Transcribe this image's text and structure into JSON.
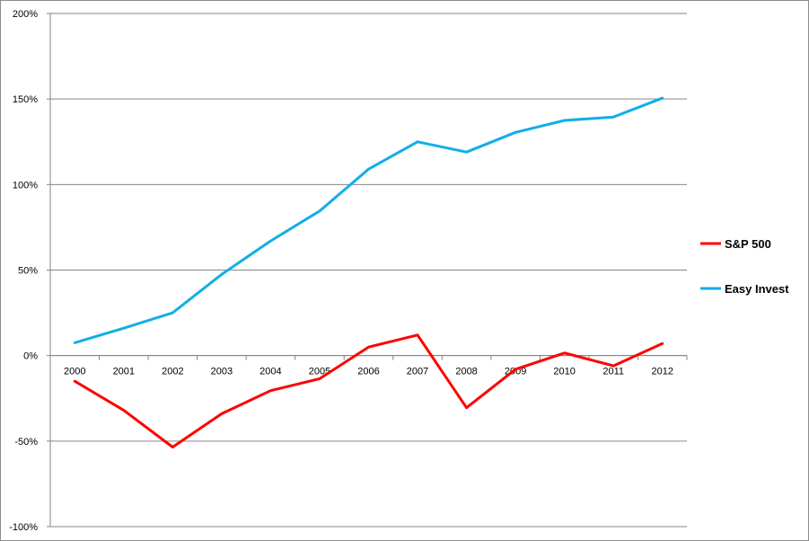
{
  "chart_data": {
    "type": "line",
    "title": "",
    "xlabel": "",
    "ylabel": "",
    "categories": [
      "2000",
      "2001",
      "2002",
      "2003",
      "2004",
      "2005",
      "2006",
      "2007",
      "2008",
      "2009",
      "2010",
      "2011",
      "2012"
    ],
    "y_ticks": [
      "200%",
      "150%",
      "100%",
      "50%",
      "0%",
      "-50%",
      "-100%"
    ],
    "ylim": [
      -100,
      200
    ],
    "grid": "horizontal",
    "legend_position": "right",
    "series": [
      {
        "name": "S&P 500",
        "color": "#ff0000",
        "values": [
          -15,
          -32,
          -53.5,
          -34,
          -20.5,
          -13.5,
          5,
          12,
          -30.5,
          -8,
          1.5,
          -6,
          7
        ]
      },
      {
        "name": "Easy Invest",
        "color": "#11aee8",
        "values": [
          7.5,
          16,
          25,
          47.5,
          67,
          84.5,
          109,
          125,
          119,
          130.5,
          137.5,
          139.5,
          150.5
        ]
      }
    ]
  }
}
